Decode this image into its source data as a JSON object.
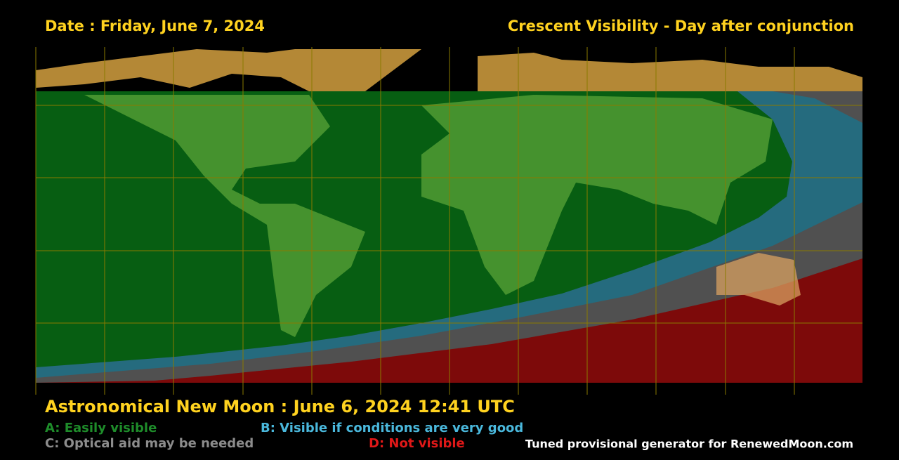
{
  "header": {
    "date": "Date : Friday, June 7, 2024",
    "title": "Crescent Visibility - Day after conjunction"
  },
  "footer": {
    "new_moon": "Astronomical New Moon : June 6, 2024 12:41 UTC",
    "legend": [
      "A: Easily visible",
      "B: Visible if conditions are very good",
      "C: Optical aid may be needed",
      "D: Not visible"
    ],
    "credit": "Tuned provisional generator for RenewedMoon.com"
  }
}
